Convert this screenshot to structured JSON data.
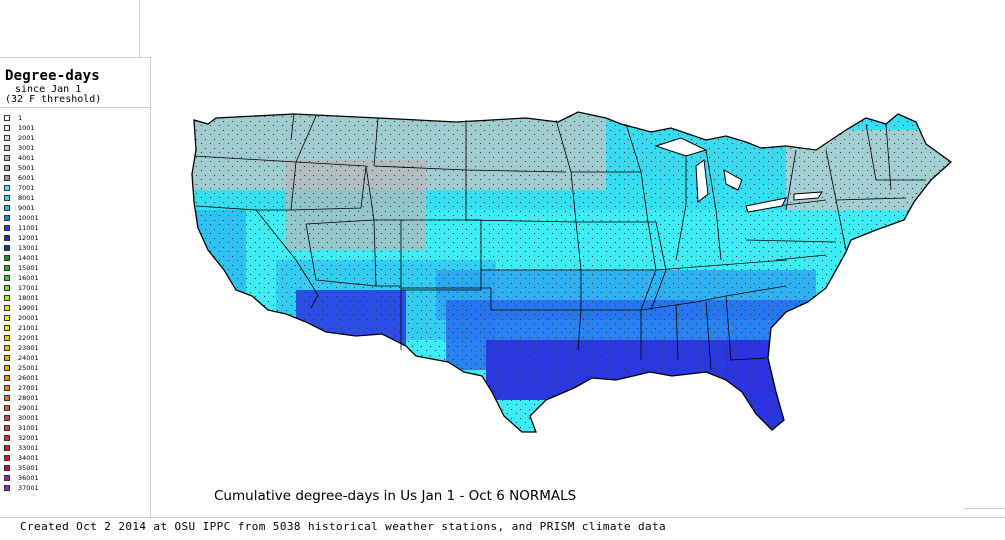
{
  "legend": {
    "title": "Degree-days",
    "subtitle_1": "since Jan 1",
    "subtitle_2": "(32 F threshold)",
    "items": [
      {
        "label": "1",
        "color": "#ffffff"
      },
      {
        "label": "1001",
        "color": "#f2f2f2"
      },
      {
        "label": "2001",
        "color": "#dedede"
      },
      {
        "label": "3001",
        "color": "#cccccc"
      },
      {
        "label": "4001",
        "color": "#b8b8b8"
      },
      {
        "label": "5001",
        "color": "#a6a6a6"
      },
      {
        "label": "6001",
        "color": "#9a9a9a"
      },
      {
        "label": "7001",
        "color": "#40f0f0"
      },
      {
        "label": "8001",
        "color": "#30d8f0"
      },
      {
        "label": "9001",
        "color": "#28b4f0"
      },
      {
        "label": "10001",
        "color": "#2080f0"
      },
      {
        "label": "11001",
        "color": "#2040f0"
      },
      {
        "label": "12001",
        "color": "#2828c8"
      },
      {
        "label": "13001",
        "color": "#1e3c96"
      },
      {
        "label": "14001",
        "color": "#189018"
      },
      {
        "label": "15001",
        "color": "#20b420"
      },
      {
        "label": "16001",
        "color": "#30d030"
      },
      {
        "label": "17001",
        "color": "#60e030"
      },
      {
        "label": "18001",
        "color": "#a0f000"
      },
      {
        "label": "19001",
        "color": "#d8f000"
      },
      {
        "label": "20001",
        "color": "#f0f000"
      },
      {
        "label": "21001",
        "color": "#f0e000"
      },
      {
        "label": "22001",
        "color": "#f0d000"
      },
      {
        "label": "23001",
        "color": "#f0c000"
      },
      {
        "label": "24001",
        "color": "#f0b000"
      },
      {
        "label": "25001",
        "color": "#f0a000"
      },
      {
        "label": "26001",
        "color": "#f09000"
      },
      {
        "label": "27001",
        "color": "#f08000"
      },
      {
        "label": "28001",
        "color": "#e07030"
      },
      {
        "label": "29001",
        "color": "#d06040"
      },
      {
        "label": "30001",
        "color": "#c05040"
      },
      {
        "label": "31001",
        "color": "#e04020"
      },
      {
        "label": "32001",
        "color": "#e03020"
      },
      {
        "label": "33001",
        "color": "#e02020"
      },
      {
        "label": "34001",
        "color": "#d01830"
      },
      {
        "label": "35001",
        "color": "#c01040"
      },
      {
        "label": "36001",
        "color": "#a020a0"
      },
      {
        "label": "37001",
        "color": "#8030c0"
      }
    ]
  },
  "map": {
    "title": "Cumulative degree-days in Us  Jan 1 - Oct 6 NORMALS"
  },
  "footer": {
    "credit": "Created Oct 2 2014 at OSU IPPC from 5038 historical weather stations, and PRISM climate data"
  }
}
